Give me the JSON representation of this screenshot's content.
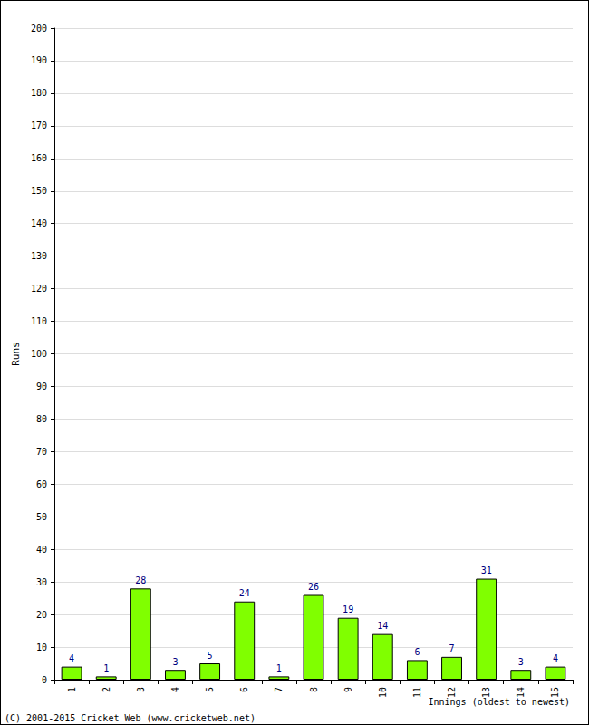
{
  "chart_data": {
    "type": "bar",
    "x_label": "Innings (oldest to newest)",
    "y_label": "Runs",
    "annotations": [
      "(C) 2001-2015 Cricket Web (www.cricketweb.net)"
    ],
    "categories": [
      "1",
      "2",
      "3",
      "4",
      "5",
      "6",
      "7",
      "8",
      "9",
      "10",
      "11",
      "12",
      "13",
      "14",
      "15"
    ],
    "values": [
      4,
      1,
      28,
      3,
      5,
      24,
      1,
      26,
      19,
      14,
      6,
      7,
      31,
      3,
      4
    ],
    "color": "#80ff00",
    "ylim": [
      0,
      200
    ],
    "yticks": [
      0,
      10,
      20,
      30,
      40,
      50,
      60,
      70,
      80,
      90,
      100,
      110,
      120,
      130,
      140,
      150,
      160,
      170,
      180,
      190,
      200
    ],
    "grid": true,
    "data_labels": true
  }
}
